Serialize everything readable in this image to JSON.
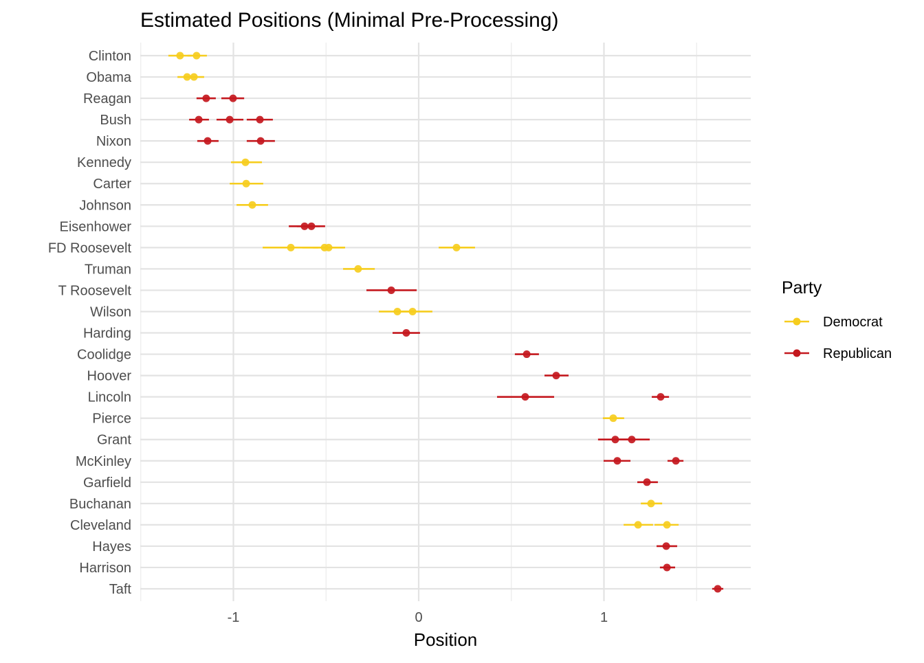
{
  "chart_data": {
    "type": "scatter",
    "title": "Estimated Positions (Minimal Pre-Processing)",
    "xlabel": "Position",
    "ylabel": "",
    "xlim": [
      -1.5,
      1.79
    ],
    "xticks": [
      -1,
      0,
      1
    ],
    "xtick_labels": [
      "-1",
      "0",
      "1"
    ],
    "grid": true,
    "legend": {
      "title": "Party",
      "placement": "right",
      "entries": [
        "Democrat",
        "Republican"
      ]
    },
    "colors": {
      "Democrat": "#F6CD1E",
      "Republican": "#C4181E"
    },
    "categories": [
      "Clinton",
      "Obama",
      "Reagan",
      "Bush",
      "Nixon",
      "Kennedy",
      "Carter",
      "Johnson",
      "Eisenhower",
      "FD Roosevelt",
      "Truman",
      "T Roosevelt",
      "Wilson",
      "Harding",
      "Coolidge",
      "Hoover",
      "Lincoln",
      "Pierce",
      "Grant",
      "McKinley",
      "Garfield",
      "Buchanan",
      "Cleveland",
      "Hayes",
      "Harrison",
      "Taft"
    ],
    "points": [
      {
        "president": "Clinton",
        "party": "Democrat",
        "estimate": -1.288,
        "lo": -1.351,
        "hi": -1.224
      },
      {
        "president": "Clinton",
        "party": "Democrat",
        "estimate": -1.199,
        "lo": -1.247,
        "hi": -1.143
      },
      {
        "president": "Obama",
        "party": "Democrat",
        "estimate": -1.25,
        "lo": -1.302,
        "hi": -1.213
      },
      {
        "president": "Obama",
        "party": "Democrat",
        "estimate": -1.213,
        "lo": -1.265,
        "hi": -1.158
      },
      {
        "president": "Reagan",
        "party": "Republican",
        "estimate": -1.147,
        "lo": -1.199,
        "hi": -1.095
      },
      {
        "president": "Reagan",
        "party": "Republican",
        "estimate": -1.002,
        "lo": -1.065,
        "hi": -0.942
      },
      {
        "president": "Bush",
        "party": "Republican",
        "estimate": -1.187,
        "lo": -1.239,
        "hi": -1.132
      },
      {
        "president": "Bush",
        "party": "Republican",
        "estimate": -1.02,
        "lo": -1.091,
        "hi": -0.946
      },
      {
        "president": "Bush",
        "party": "Republican",
        "estimate": -0.857,
        "lo": -0.928,
        "hi": -0.787
      },
      {
        "president": "Nixon",
        "party": "Republican",
        "estimate": -1.139,
        "lo": -1.195,
        "hi": -1.08
      },
      {
        "president": "Nixon",
        "party": "Republican",
        "estimate": -0.853,
        "lo": -0.928,
        "hi": -0.776
      },
      {
        "president": "Kennedy",
        "party": "Democrat",
        "estimate": -0.935,
        "lo": -1.013,
        "hi": -0.846
      },
      {
        "president": "Carter",
        "party": "Democrat",
        "estimate": -0.931,
        "lo": -1.02,
        "hi": -0.839
      },
      {
        "president": "Johnson",
        "party": "Democrat",
        "estimate": -0.898,
        "lo": -0.983,
        "hi": -0.813
      },
      {
        "president": "Eisenhower",
        "party": "Republican",
        "estimate": -0.616,
        "lo": -0.701,
        "hi": -0.534
      },
      {
        "president": "Eisenhower",
        "party": "Republican",
        "estimate": -0.579,
        "lo": -0.657,
        "hi": -0.505
      },
      {
        "president": "FD Roosevelt",
        "party": "Democrat",
        "estimate": -0.69,
        "lo": -0.842,
        "hi": -0.542
      },
      {
        "president": "FD Roosevelt",
        "party": "Democrat",
        "estimate": -0.508,
        "lo": -0.627,
        "hi": -0.404
      },
      {
        "president": "FD Roosevelt",
        "party": "Democrat",
        "estimate": -0.486,
        "lo": -0.571,
        "hi": -0.397
      },
      {
        "president": "FD Roosevelt",
        "party": "Democrat",
        "estimate": 0.204,
        "lo": 0.108,
        "hi": 0.304
      },
      {
        "president": "Truman",
        "party": "Democrat",
        "estimate": -0.327,
        "lo": -0.408,
        "hi": -0.237
      },
      {
        "president": "T Roosevelt",
        "party": "Republican",
        "estimate": -0.148,
        "lo": -0.282,
        "hi": -0.011
      },
      {
        "president": "Wilson",
        "party": "Democrat",
        "estimate": -0.115,
        "lo": -0.215,
        "hi": -0.015
      },
      {
        "president": "Wilson",
        "party": "Democrat",
        "estimate": -0.033,
        "lo": -0.137,
        "hi": 0.074
      },
      {
        "president": "Harding",
        "party": "Republican",
        "estimate": -0.067,
        "lo": -0.141,
        "hi": 0.007
      },
      {
        "president": "Coolidge",
        "party": "Republican",
        "estimate": 0.583,
        "lo": 0.519,
        "hi": 0.649
      },
      {
        "president": "Hoover",
        "party": "Republican",
        "estimate": 0.742,
        "lo": 0.679,
        "hi": 0.809
      },
      {
        "president": "Lincoln",
        "party": "Republican",
        "estimate": 0.575,
        "lo": 0.423,
        "hi": 0.731
      },
      {
        "president": "Lincoln",
        "party": "Republican",
        "estimate": 1.306,
        "lo": 1.258,
        "hi": 1.351
      },
      {
        "president": "Pierce",
        "party": "Democrat",
        "estimate": 1.05,
        "lo": 0.994,
        "hi": 1.109
      },
      {
        "president": "Grant",
        "party": "Republican",
        "estimate": 1.061,
        "lo": 0.968,
        "hi": 1.154
      },
      {
        "president": "Grant",
        "party": "Republican",
        "estimate": 1.15,
        "lo": 1.054,
        "hi": 1.247
      },
      {
        "president": "McKinley",
        "party": "Republican",
        "estimate": 1.072,
        "lo": 0.998,
        "hi": 1.143
      },
      {
        "president": "McKinley",
        "party": "Republican",
        "estimate": 1.388,
        "lo": 1.343,
        "hi": 1.429
      },
      {
        "president": "Garfield",
        "party": "Republican",
        "estimate": 1.232,
        "lo": 1.18,
        "hi": 1.291
      },
      {
        "president": "Buchanan",
        "party": "Democrat",
        "estimate": 1.254,
        "lo": 1.199,
        "hi": 1.314
      },
      {
        "president": "Cleveland",
        "party": "Democrat",
        "estimate": 1.184,
        "lo": 1.106,
        "hi": 1.265
      },
      {
        "president": "Cleveland",
        "party": "Democrat",
        "estimate": 1.34,
        "lo": 1.273,
        "hi": 1.403
      },
      {
        "president": "Hayes",
        "party": "Republican",
        "estimate": 1.336,
        "lo": 1.284,
        "hi": 1.395
      },
      {
        "president": "Harrison",
        "party": "Republican",
        "estimate": 1.34,
        "lo": 1.302,
        "hi": 1.384
      },
      {
        "president": "Taft",
        "party": "Republican",
        "estimate": 1.614,
        "lo": 1.584,
        "hi": 1.644
      }
    ]
  }
}
